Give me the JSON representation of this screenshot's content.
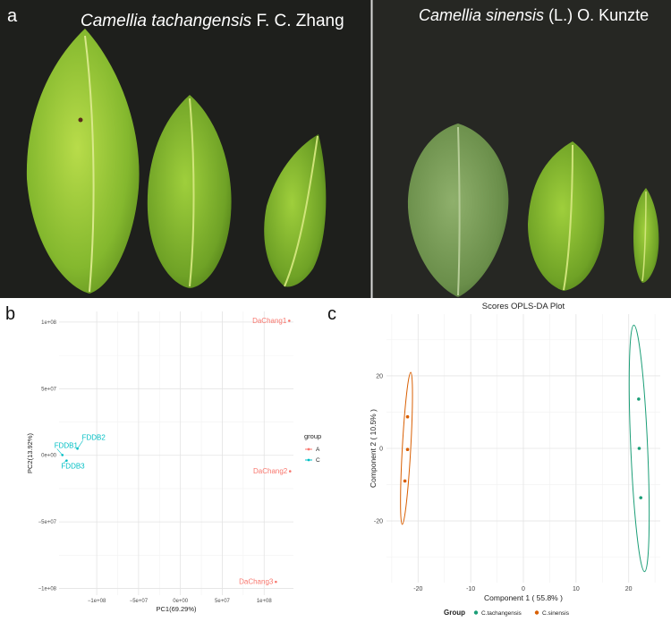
{
  "figure": {
    "panel_a": {
      "label": "a",
      "left_species": "Camellia tachangensis",
      "left_author": " F. C. Zhang",
      "right_species": "Camellia sinensis",
      "right_author": " (L.) O. Kunzte"
    },
    "panel_b": {
      "label": "b"
    },
    "panel_c": {
      "label": "c"
    }
  },
  "chart_data": [
    {
      "type": "scatter",
      "panel": "b",
      "xlabel": "PC1(69.29%)",
      "ylabel": "PC2(13.92%)",
      "xlim": [
        -145000000.0,
        135000000.0
      ],
      "ylim": [
        -105000000.0,
        108000000.0
      ],
      "x_ticks": [
        -100000000.0,
        -50000000.0,
        0,
        50000000.0,
        100000000.0
      ],
      "x_tick_labels": [
        "−1e+08",
        "−5e+07",
        "0e+00",
        "5e+07",
        "1e+08"
      ],
      "y_ticks": [
        -100000000.0,
        -50000000.0,
        0,
        50000000.0,
        100000000.0
      ],
      "y_tick_labels": [
        "−1e+08",
        "−5e+07",
        "0e+00",
        "5e+07",
        "1e+08"
      ],
      "legend": {
        "title": "group",
        "entries": [
          "A",
          "C"
        ],
        "placement": "right"
      },
      "series": [
        {
          "name": "A",
          "color": "#f8766d",
          "points": [
            {
              "label": "DaChang1",
              "x": 130000000.0,
              "y": 101000000.0
            },
            {
              "label": "DaChang2",
              "x": 131000000.0,
              "y": -12000000.0
            },
            {
              "label": "DaChang3",
              "x": 114000000.0,
              "y": -95000000.0
            }
          ]
        },
        {
          "name": "C",
          "color": "#00bfc4",
          "points": [
            {
              "label": "FDDB1",
              "x": -141000000.0,
              "y": 200000.0
            },
            {
              "label": "FDDB2",
              "x": -123000000.0,
              "y": 5000000.0
            },
            {
              "label": "FDDB3",
              "x": -136000000.0,
              "y": -4000000.0
            }
          ]
        }
      ]
    },
    {
      "type": "scatter",
      "panel": "c",
      "title": "Scores OPLS-DA Plot",
      "xlabel": "Component 1 ( 55.8% )",
      "ylabel": "Component 2 ( 10.5% )",
      "xlim": [
        -26,
        26
      ],
      "ylim": [
        -37,
        37
      ],
      "x_ticks": [
        -20,
        -10,
        0,
        10,
        20
      ],
      "y_ticks": [
        -20,
        0,
        20
      ],
      "legend": {
        "title": "Group",
        "entries": [
          "C.tachangensis",
          "C.sinensis"
        ],
        "placement": "bottom"
      },
      "series": [
        {
          "name": "C.tachangensis",
          "color": "#1b9e77",
          "points": [
            {
              "x": 21.9,
              "y": 13.6
            },
            {
              "x": 22.0,
              "y": 0.0
            },
            {
              "x": 22.3,
              "y": -13.6
            }
          ],
          "ellipse": {
            "cx": 22.0,
            "cy": 0,
            "rx": 1.6,
            "ry": 34,
            "angle_deg": -2.5
          }
        },
        {
          "name": "C.sinensis",
          "color": "#d95f02",
          "points": [
            {
              "x": -22.0,
              "y": 8.7
            },
            {
              "x": -22.0,
              "y": -0.3
            },
            {
              "x": -22.5,
              "y": -9.0
            }
          ],
          "ellipse": {
            "cx": -22.2,
            "cy": 0,
            "rx": 0.8,
            "ry": 21,
            "angle_deg": 3.2
          }
        }
      ]
    }
  ]
}
